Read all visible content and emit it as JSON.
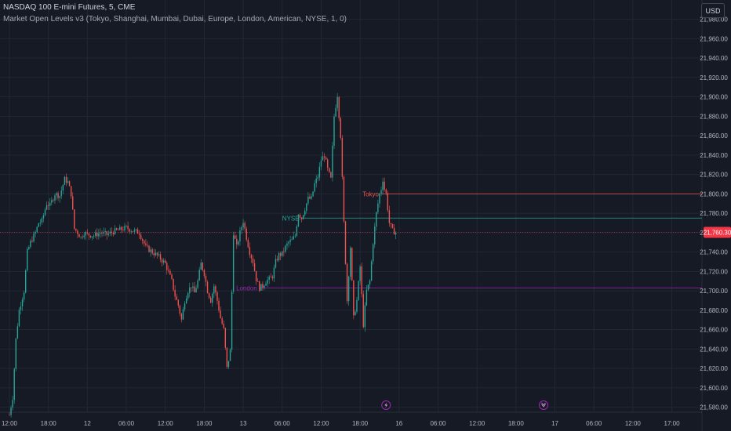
{
  "header": {
    "title": "NASDAQ 100 E-mini Futures, 5, CME",
    "indicator": "Market Open Levels v3 (Tokyo, Shanghai, Mumbai, Dubai, Europe, London, American, NYSE, 1, 0)"
  },
  "currency_button": "USD",
  "colors": {
    "background": "#161a25",
    "grid": "#232734",
    "up": "#26a69a",
    "down": "#ef5350",
    "price_tag": "#f23645",
    "tokyo": "#ef5350",
    "nyse": "#26a69a",
    "london": "#9c27b0"
  },
  "chart_data": {
    "type": "candlestick",
    "symbol": "NASDAQ 100 E-mini Futures",
    "interval": "5",
    "exchange": "CME",
    "ylim": [
      21570,
      21995
    ],
    "y_ticks": [
      "21,980.00",
      "21,960.00",
      "21,940.00",
      "21,920.00",
      "21,900.00",
      "21,880.00",
      "21,860.00",
      "21,840.00",
      "21,820.00",
      "21,800.00",
      "21,780.00",
      "21,760.00",
      "21,740.00",
      "21,720.00",
      "21,700.00",
      "21,680.00",
      "21,660.00",
      "21,640.00",
      "21,620.00",
      "21,600.00",
      "21,580.00"
    ],
    "y_tick_values": [
      21980,
      21960,
      21940,
      21920,
      21900,
      21880,
      21860,
      21840,
      21820,
      21800,
      21780,
      21760,
      21740,
      21720,
      21700,
      21680,
      21660,
      21640,
      21620,
      21600,
      21580
    ],
    "x_ticks": [
      "12:00",
      "18:00",
      "12",
      "06:00",
      "12:00",
      "18:00",
      "13",
      "06:00",
      "12:00",
      "18:00",
      "16",
      "06:00",
      "12:00",
      "18:00",
      "17",
      "06:00",
      "12:00",
      "17:00"
    ],
    "x_tick_index": [
      0,
      24,
      48,
      72,
      96,
      120,
      144,
      168,
      192,
      216,
      240,
      264,
      288,
      312,
      336,
      360,
      384,
      408
    ],
    "x_max_index": 448,
    "last_index": 232,
    "current_price": 21760.3,
    "current_price_label": "21,760.30",
    "levels": [
      {
        "name": "Tokyo",
        "label": "Tokyo",
        "price": 21800,
        "start_index": 229,
        "color_key": "tokyo"
      },
      {
        "name": "NYSE",
        "label": "NYSE",
        "price": 21775,
        "start_index": 180,
        "color_key": "nyse"
      },
      {
        "name": "London",
        "label": "London",
        "price": 21703,
        "start_index": 154,
        "color_key": "london"
      }
    ],
    "event_markers": [
      {
        "index": 232,
        "icon": "lightning-icon"
      },
      {
        "index": 329,
        "icon": "dividend-icon"
      }
    ],
    "price_path": [
      [
        0,
        21572
      ],
      [
        2,
        21590
      ],
      [
        4,
        21650
      ],
      [
        6,
        21680
      ],
      [
        9,
        21700
      ],
      [
        11,
        21740
      ],
      [
        13,
        21750
      ],
      [
        16,
        21760
      ],
      [
        18,
        21770
      ],
      [
        20,
        21772
      ],
      [
        23,
        21790
      ],
      [
        25,
        21788
      ],
      [
        28,
        21800
      ],
      [
        31,
        21798
      ],
      [
        34,
        21815
      ],
      [
        36,
        21812
      ],
      [
        38,
        21800
      ],
      [
        40,
        21764
      ],
      [
        42,
        21760
      ],
      [
        44,
        21755
      ],
      [
        46,
        21760
      ],
      [
        48,
        21758
      ],
      [
        52,
        21757
      ],
      [
        56,
        21760
      ],
      [
        60,
        21758
      ],
      [
        64,
        21761
      ],
      [
        68,
        21763
      ],
      [
        72,
        21765
      ],
      [
        76,
        21762
      ],
      [
        80,
        21760
      ],
      [
        84,
        21745
      ],
      [
        88,
        21740
      ],
      [
        92,
        21735
      ],
      [
        96,
        21728
      ],
      [
        100,
        21710
      ],
      [
        102,
        21695
      ],
      [
        104,
        21685
      ],
      [
        106,
        21670
      ],
      [
        108,
        21690
      ],
      [
        110,
        21700
      ],
      [
        112,
        21705
      ],
      [
        114,
        21698
      ],
      [
        116,
        21710
      ],
      [
        118,
        21728
      ],
      [
        120,
        21718
      ],
      [
        122,
        21700
      ],
      [
        124,
        21690
      ],
      [
        126,
        21705
      ],
      [
        128,
        21690
      ],
      [
        130,
        21672
      ],
      [
        132,
        21660
      ],
      [
        134,
        21620
      ],
      [
        136,
        21638
      ],
      [
        138,
        21760
      ],
      [
        140,
        21745
      ],
      [
        142,
        21760
      ],
      [
        144,
        21772
      ],
      [
        146,
        21755
      ],
      [
        148,
        21740
      ],
      [
        150,
        21730
      ],
      [
        152,
        21712
      ],
      [
        154,
        21703
      ],
      [
        156,
        21705
      ],
      [
        158,
        21710
      ],
      [
        160,
        21712
      ],
      [
        162,
        21715
      ],
      [
        164,
        21730
      ],
      [
        166,
        21737
      ],
      [
        168,
        21738
      ],
      [
        170,
        21745
      ],
      [
        172,
        21750
      ],
      [
        174,
        21752
      ],
      [
        176,
        21757
      ],
      [
        178,
        21780
      ],
      [
        180,
        21775
      ],
      [
        182,
        21785
      ],
      [
        184,
        21795
      ],
      [
        186,
        21795
      ],
      [
        188,
        21810
      ],
      [
        190,
        21818
      ],
      [
        192,
        21835
      ],
      [
        194,
        21840
      ],
      [
        196,
        21825
      ],
      [
        198,
        21815
      ],
      [
        200,
        21880
      ],
      [
        202,
        21902
      ],
      [
        204,
        21860
      ],
      [
        206,
        21770
      ],
      [
        208,
        21690
      ],
      [
        210,
        21745
      ],
      [
        212,
        21672
      ],
      [
        214,
        21690
      ],
      [
        216,
        21725
      ],
      [
        218,
        21665
      ],
      [
        220,
        21700
      ],
      [
        222,
        21710
      ],
      [
        224,
        21750
      ],
      [
        226,
        21780
      ],
      [
        228,
        21800
      ],
      [
        229,
        21805
      ],
      [
        230,
        21815
      ],
      [
        231,
        21805
      ],
      [
        232,
        21800
      ],
      [
        233,
        21785
      ],
      [
        234,
        21770
      ],
      [
        236,
        21762
      ],
      [
        238,
        21760
      ]
    ]
  }
}
